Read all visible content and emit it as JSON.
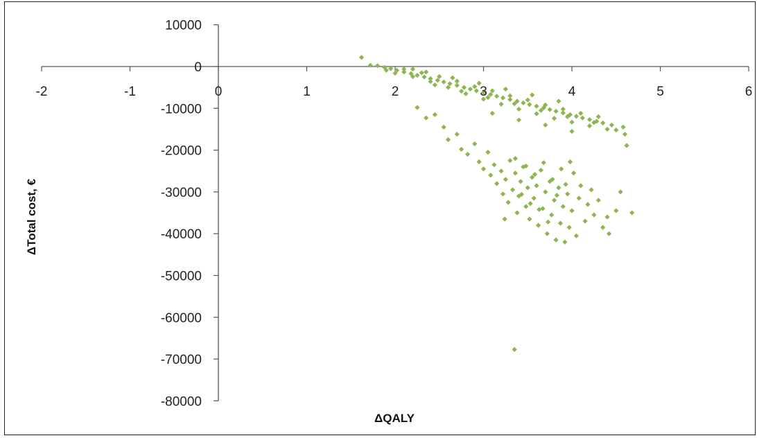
{
  "chart_data": {
    "type": "scatter",
    "title": "",
    "xlabel": "ΔQALY",
    "ylabel": "ΔTotal cost, €",
    "xlim": [
      -2,
      6
    ],
    "ylim": [
      -80000,
      10000
    ],
    "x_ticks": [
      "-2",
      "-1",
      "0",
      "1",
      "2",
      "3",
      "4",
      "5",
      "6"
    ],
    "y_ticks": [
      "10000",
      "0",
      "-10000",
      "-20000",
      "-30000",
      "-40000",
      "-50000",
      "-60000",
      "-70000",
      "-80000"
    ],
    "grid": false,
    "legend": "none",
    "marker_color": "#8db552",
    "series": [
      {
        "points": [
          [
            1.62,
            2200
          ],
          [
            1.72,
            300
          ],
          [
            1.8,
            200
          ],
          [
            1.88,
            -200
          ],
          [
            1.95,
            -500
          ],
          [
            2.02,
            -900
          ],
          [
            2.1,
            -1300
          ],
          [
            2.18,
            -1700
          ],
          [
            2.25,
            -2100
          ],
          [
            2.33,
            -2500
          ],
          [
            2.4,
            -2900
          ],
          [
            2.48,
            -3300
          ],
          [
            2.55,
            -3700
          ],
          [
            2.62,
            -4100
          ],
          [
            2.7,
            -4500
          ],
          [
            2.78,
            -5000
          ],
          [
            2.85,
            -5400
          ],
          [
            2.92,
            -5800
          ],
          [
            3.0,
            -6200
          ],
          [
            3.08,
            -6700
          ],
          [
            3.15,
            -7100
          ],
          [
            3.22,
            -7500
          ],
          [
            3.3,
            -7900
          ],
          [
            3.38,
            -8300
          ],
          [
            3.45,
            -8700
          ],
          [
            3.52,
            -9100
          ],
          [
            3.6,
            -9500
          ],
          [
            3.68,
            -9900
          ],
          [
            3.75,
            -10300
          ],
          [
            3.82,
            -10700
          ],
          [
            3.9,
            -11100
          ],
          [
            3.98,
            -11500
          ],
          [
            4.05,
            -11900
          ],
          [
            4.12,
            -12300
          ],
          [
            4.2,
            -12700
          ],
          [
            4.28,
            -13100
          ],
          [
            4.35,
            -13500
          ],
          [
            4.45,
            -14000
          ],
          [
            4.58,
            -14500
          ],
          [
            1.9,
            -900
          ],
          [
            2.0,
            -1600
          ],
          [
            2.1,
            -600
          ],
          [
            2.2,
            -2400
          ],
          [
            2.3,
            -1500
          ],
          [
            2.4,
            -3600
          ],
          [
            2.5,
            -2400
          ],
          [
            2.6,
            -5000
          ],
          [
            2.7,
            -3500
          ],
          [
            2.8,
            -6500
          ],
          [
            2.9,
            -4800
          ],
          [
            3.0,
            -7800
          ],
          [
            3.1,
            -5800
          ],
          [
            3.2,
            -9000
          ],
          [
            3.3,
            -7000
          ],
          [
            3.4,
            -10200
          ],
          [
            3.5,
            -8000
          ],
          [
            3.6,
            -11300
          ],
          [
            3.7,
            -9200
          ],
          [
            3.8,
            -12400
          ],
          [
            3.9,
            -10200
          ],
          [
            4.0,
            -13300
          ],
          [
            4.1,
            -11200
          ],
          [
            4.2,
            -14200
          ],
          [
            4.3,
            -12000
          ],
          [
            4.4,
            -15000
          ],
          [
            2.2,
            -600
          ],
          [
            2.35,
            -1300
          ],
          [
            2.65,
            -2700
          ],
          [
            2.95,
            -4000
          ],
          [
            3.25,
            -5400
          ],
          [
            3.55,
            -6800
          ],
          [
            3.85,
            -8300
          ],
          [
            2.45,
            -4400
          ],
          [
            2.75,
            -5900
          ],
          [
            3.05,
            -7400
          ],
          [
            3.35,
            -8900
          ],
          [
            3.65,
            -10500
          ],
          [
            3.95,
            -12000
          ],
          [
            4.25,
            -13400
          ],
          [
            4.5,
            -15200
          ],
          [
            4.6,
            -16200
          ],
          [
            4.62,
            -18900
          ],
          [
            4.0,
            -15500
          ],
          [
            3.7,
            -14000
          ],
          [
            3.4,
            -12800
          ],
          [
            3.1,
            -11200
          ],
          [
            2.25,
            -9800
          ],
          [
            2.35,
            -12300
          ],
          [
            2.45,
            -11500
          ],
          [
            2.55,
            -14500
          ],
          [
            2.6,
            -17500
          ],
          [
            2.7,
            -16200
          ],
          [
            2.75,
            -19800
          ],
          [
            2.82,
            -21000
          ],
          [
            2.9,
            -18500
          ],
          [
            2.95,
            -22800
          ],
          [
            3.0,
            -24500
          ],
          [
            3.05,
            -20500
          ],
          [
            3.08,
            -26000
          ],
          [
            3.12,
            -23500
          ],
          [
            3.15,
            -28000
          ],
          [
            3.2,
            -25000
          ],
          [
            3.22,
            -30500
          ],
          [
            3.25,
            -27000
          ],
          [
            3.28,
            -32500
          ],
          [
            3.3,
            -22500
          ],
          [
            3.33,
            -29500
          ],
          [
            3.36,
            -25500
          ],
          [
            3.38,
            -35000
          ],
          [
            3.4,
            -31000
          ],
          [
            3.42,
            -27500
          ],
          [
            3.45,
            -24000
          ],
          [
            3.48,
            -33500
          ],
          [
            3.5,
            -29000
          ],
          [
            3.52,
            -36500
          ],
          [
            3.55,
            -26500
          ],
          [
            3.57,
            -31500
          ],
          [
            3.6,
            -28500
          ],
          [
            3.62,
            -38000
          ],
          [
            3.65,
            -24800
          ],
          [
            3.67,
            -34000
          ],
          [
            3.7,
            -30000
          ],
          [
            3.72,
            -40000
          ],
          [
            3.75,
            -27500
          ],
          [
            3.77,
            -35500
          ],
          [
            3.8,
            -32000
          ],
          [
            3.82,
            -41500
          ],
          [
            3.85,
            -29000
          ],
          [
            3.87,
            -37500
          ],
          [
            3.9,
            -33500
          ],
          [
            3.92,
            -42000
          ],
          [
            3.95,
            -30500
          ],
          [
            3.97,
            -38500
          ],
          [
            4.0,
            -34500
          ],
          [
            4.02,
            -25500
          ],
          [
            4.05,
            -40500
          ],
          [
            4.08,
            -31500
          ],
          [
            4.1,
            -28500
          ],
          [
            4.15,
            -37000
          ],
          [
            4.18,
            -33000
          ],
          [
            4.22,
            -29500
          ],
          [
            4.25,
            -35500
          ],
          [
            4.3,
            -32000
          ],
          [
            4.35,
            -38500
          ],
          [
            4.4,
            -36000
          ],
          [
            4.42,
            -40000
          ],
          [
            4.5,
            -34500
          ],
          [
            4.55,
            -30000
          ],
          [
            4.68,
            -35000
          ],
          [
            3.24,
            -36500
          ],
          [
            3.36,
            -22000
          ],
          [
            3.48,
            -23800
          ],
          [
            3.58,
            -25800
          ],
          [
            3.68,
            -23000
          ],
          [
            3.78,
            -27000
          ],
          [
            3.88,
            -24500
          ],
          [
            3.98,
            -22800
          ],
          [
            3.53,
            -32800
          ],
          [
            3.63,
            -34200
          ],
          [
            3.73,
            -37200
          ],
          [
            3.83,
            -30800
          ],
          [
            3.93,
            -28200
          ],
          [
            3.43,
            -30600
          ],
          [
            3.35,
            -67700
          ]
        ]
      }
    ]
  }
}
